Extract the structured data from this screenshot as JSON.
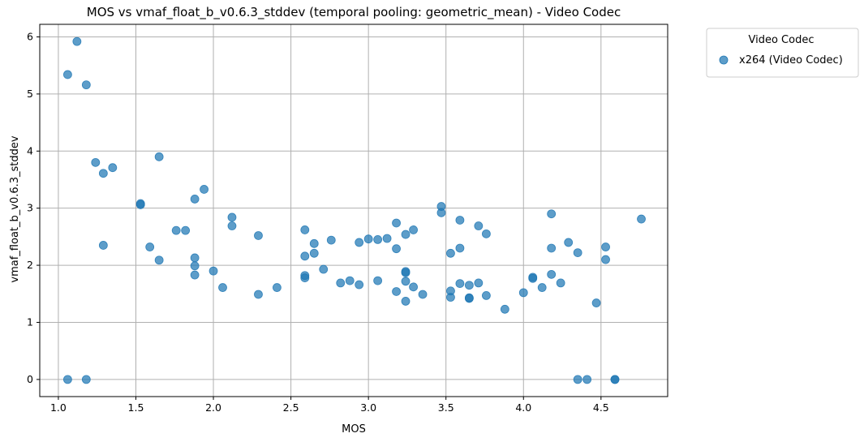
{
  "chart_data": {
    "type": "scatter",
    "title": "MOS vs vmaf_float_b_v0.6.3_stddev (temporal pooling: geometric_mean) - Video Codec",
    "xlabel": "MOS",
    "ylabel": "vmaf_float_b_v0.6.3_stddev",
    "xlim": [
      0.88,
      4.93
    ],
    "ylim": [
      -0.3,
      6.22
    ],
    "xticks": [
      1.0,
      1.5,
      2.0,
      2.5,
      3.0,
      3.5,
      4.0,
      4.5
    ],
    "xtick_labels": [
      "1.0",
      "1.5",
      "2.0",
      "2.5",
      "3.0",
      "3.5",
      "4.0",
      "4.5"
    ],
    "yticks": [
      0,
      1,
      2,
      3,
      4,
      5,
      6
    ],
    "ytick_labels": [
      "0",
      "1",
      "2",
      "3",
      "4",
      "5",
      "6"
    ],
    "grid": true,
    "legend_title": "Video Codec",
    "legend_placement": "outside-upper-right",
    "series": [
      {
        "name": "x264 (Video Codec)",
        "color": "#1f77b4",
        "points": [
          [
            1.06,
            5.34
          ],
          [
            1.12,
            5.92
          ],
          [
            1.18,
            5.16
          ],
          [
            1.06,
            0.0
          ],
          [
            1.18,
            0.0
          ],
          [
            1.24,
            3.8
          ],
          [
            1.29,
            3.61
          ],
          [
            1.35,
            3.71
          ],
          [
            1.29,
            2.35
          ],
          [
            1.53,
            3.08
          ],
          [
            1.53,
            3.06
          ],
          [
            1.59,
            2.32
          ],
          [
            1.65,
            3.9
          ],
          [
            1.65,
            2.09
          ],
          [
            1.76,
            2.61
          ],
          [
            1.82,
            2.61
          ],
          [
            1.88,
            3.16
          ],
          [
            1.88,
            2.13
          ],
          [
            1.88,
            1.99
          ],
          [
            1.88,
            1.83
          ],
          [
            1.94,
            3.33
          ],
          [
            2.0,
            1.9
          ],
          [
            2.06,
            1.61
          ],
          [
            2.12,
            2.84
          ],
          [
            2.12,
            2.69
          ],
          [
            2.29,
            2.52
          ],
          [
            2.29,
            1.49
          ],
          [
            2.41,
            1.61
          ],
          [
            2.59,
            2.62
          ],
          [
            2.59,
            2.16
          ],
          [
            2.59,
            1.82
          ],
          [
            2.59,
            1.78
          ],
          [
            2.65,
            2.38
          ],
          [
            2.65,
            2.21
          ],
          [
            2.71,
            1.93
          ],
          [
            2.76,
            2.44
          ],
          [
            2.82,
            1.69
          ],
          [
            2.88,
            1.73
          ],
          [
            2.94,
            2.4
          ],
          [
            2.94,
            1.66
          ],
          [
            3.0,
            2.46
          ],
          [
            3.06,
            2.45
          ],
          [
            3.06,
            1.73
          ],
          [
            3.12,
            2.47
          ],
          [
            3.18,
            2.74
          ],
          [
            3.18,
            2.29
          ],
          [
            3.18,
            1.54
          ],
          [
            3.24,
            2.54
          ],
          [
            3.24,
            1.89
          ],
          [
            3.24,
            1.87
          ],
          [
            3.24,
            1.72
          ],
          [
            3.24,
            1.37
          ],
          [
            3.29,
            2.62
          ],
          [
            3.29,
            1.62
          ],
          [
            3.35,
            1.49
          ],
          [
            3.47,
            3.03
          ],
          [
            3.47,
            2.92
          ],
          [
            3.53,
            2.21
          ],
          [
            3.53,
            1.55
          ],
          [
            3.53,
            1.44
          ],
          [
            3.59,
            2.79
          ],
          [
            3.59,
            2.3
          ],
          [
            3.59,
            1.68
          ],
          [
            3.65,
            1.65
          ],
          [
            3.65,
            1.43
          ],
          [
            3.65,
            1.42
          ],
          [
            3.71,
            2.69
          ],
          [
            3.71,
            1.69
          ],
          [
            3.76,
            2.55
          ],
          [
            3.76,
            1.47
          ],
          [
            3.88,
            1.23
          ],
          [
            4.0,
            1.52
          ],
          [
            4.06,
            1.79
          ],
          [
            4.06,
            1.77
          ],
          [
            4.12,
            1.61
          ],
          [
            4.18,
            2.9
          ],
          [
            4.18,
            2.3
          ],
          [
            4.18,
            1.84
          ],
          [
            4.24,
            1.69
          ],
          [
            4.29,
            2.4
          ],
          [
            4.35,
            2.22
          ],
          [
            4.35,
            0.0
          ],
          [
            4.41,
            0.0
          ],
          [
            4.47,
            1.34
          ],
          [
            4.53,
            2.32
          ],
          [
            4.53,
            2.1
          ],
          [
            4.59,
            0.0
          ],
          [
            4.59,
            0.0
          ],
          [
            4.76,
            2.81
          ]
        ]
      }
    ]
  }
}
